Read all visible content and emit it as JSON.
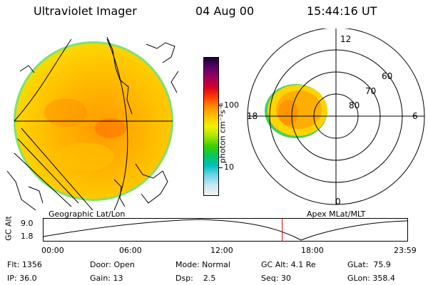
{
  "header": {
    "instrument": "Ultraviolet Imager",
    "date": "04 Aug 00",
    "time": "15:44:16 UT"
  },
  "colorbar": {
    "label": "photon cm⁻²s⁻¹",
    "ticks": [
      "100",
      "10"
    ],
    "colors": [
      "#1a0033",
      "#5c006b",
      "#a0005a",
      "#d6002a",
      "#ff3a00",
      "#ff8c00",
      "#ffc400",
      "#f2f200",
      "#a8e600",
      "#3ccf00",
      "#00c860",
      "#00c0c0",
      "#70d6e6",
      "#c8eaf0",
      "#f2f2f2"
    ]
  },
  "left_panel": {
    "label": "Geographic Lat/Lon",
    "outline_color": "#000000"
  },
  "right_panel": {
    "label": "Apex MLat/MLT",
    "mlt_labels": {
      "top": "12",
      "bottom": "0",
      "left": "18",
      "right": "6"
    },
    "mlat_labels": [
      "60",
      "70",
      "80"
    ]
  },
  "altitude_plot": {
    "ylabel": "GC Alt",
    "y_ticks": [
      "9.0",
      "1.8"
    ],
    "x_ticks": [
      "00:00",
      "06:00",
      "12:00",
      "18:00",
      "23:59"
    ],
    "marker_color": "#d40000",
    "marker_time_hours": 15.74
  },
  "info": {
    "filter": "Flt: 1356",
    "ip": "IP: 36.0",
    "door": "Door: Open",
    "gain": "Gain: 13",
    "mode": "Mode: Normal",
    "dsp": "Dsp:    2.5",
    "gc_alt": "GC Alt: 4.1 Re",
    "seq": "Seq: 30",
    "glat": "GLat:  75.9",
    "glon": "GLon: 358.4"
  }
}
